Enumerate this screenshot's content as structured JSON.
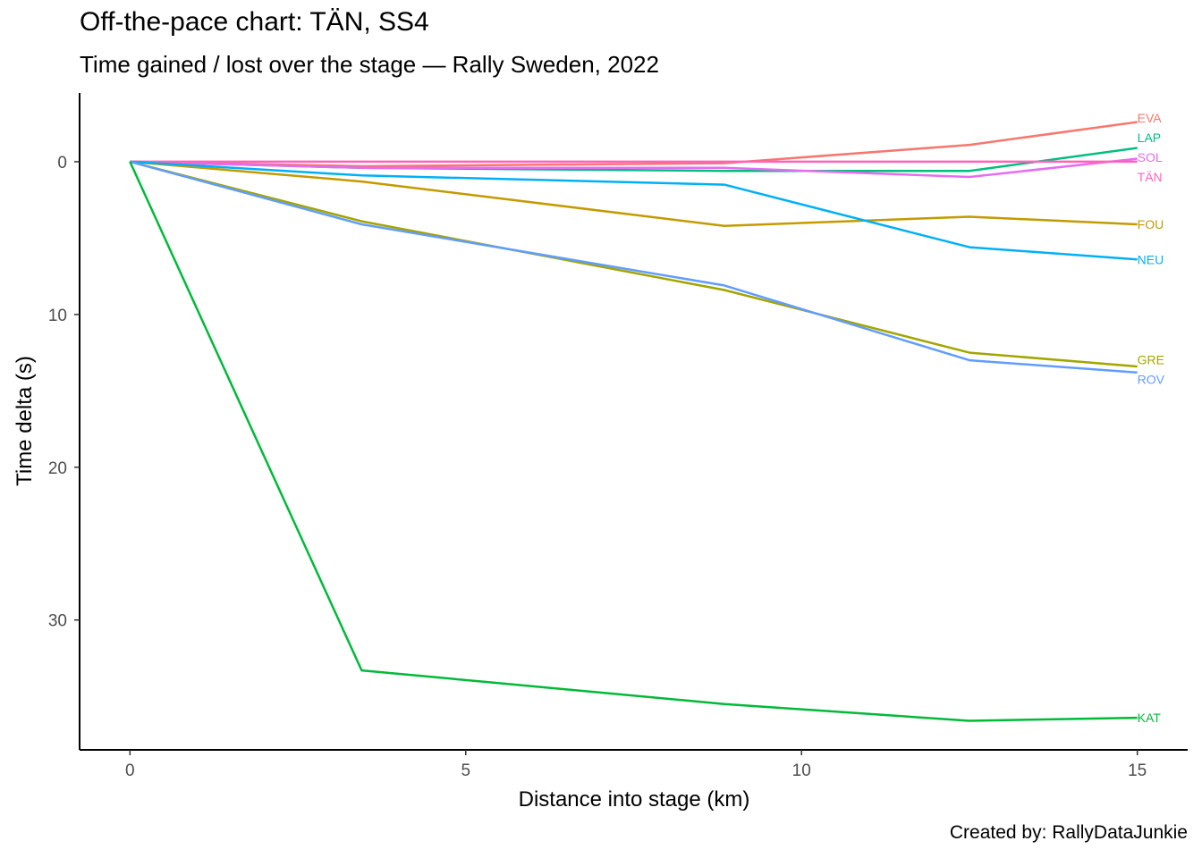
{
  "chart_data": {
    "type": "line",
    "title": "Off-the-pace chart: TÄN, SS4",
    "subtitle": "Time gained / lost over the stage — Rally Sweden, 2022",
    "caption": "Created by: RallyDataJunkie",
    "xlabel": "Distance into stage (km)",
    "ylabel": "Time delta (s)",
    "xlim": [
      -0.75,
      15.75
    ],
    "ylim": [
      -4.5,
      38.5
    ],
    "y_reversed": true,
    "xticks": [
      0,
      5,
      10,
      15
    ],
    "yticks": [
      0,
      10,
      20,
      30
    ],
    "grid": false,
    "legend": "direct labels at line ends",
    "series": [
      {
        "name": "EVA",
        "color": "#F8766D",
        "x": [
          0,
          3.45,
          8.85,
          12.5,
          15
        ],
        "y": [
          0,
          0.3,
          0.1,
          -1.1,
          -2.6
        ]
      },
      {
        "name": "LAP",
        "color": "#00BF7D",
        "x": [
          0,
          3.45,
          8.85,
          12.5,
          15
        ],
        "y": [
          0,
          0.4,
          0.6,
          0.6,
          -0.9
        ]
      },
      {
        "name": "SOL",
        "color": "#E76BF3",
        "x": [
          0,
          3.45,
          8.85,
          12.5,
          15
        ],
        "y": [
          0,
          0.4,
          0.4,
          1.0,
          -0.2
        ]
      },
      {
        "name": "TÄN",
        "color": "#FF62BC",
        "x": [
          0,
          3.45,
          8.85,
          12.5,
          15
        ],
        "y": [
          0,
          0,
          0,
          0,
          0
        ]
      },
      {
        "name": "FOU",
        "color": "#C49A00",
        "x": [
          0,
          3.45,
          8.85,
          12.5,
          15
        ],
        "y": [
          0,
          1.3,
          4.2,
          3.6,
          4.1
        ]
      },
      {
        "name": "NEU",
        "color": "#00B0F6",
        "x": [
          0,
          3.45,
          8.85,
          12.5,
          15
        ],
        "y": [
          0,
          0.9,
          1.5,
          5.6,
          6.4
        ]
      },
      {
        "name": "GRE",
        "color": "#A3A500",
        "x": [
          0,
          3.45,
          8.85,
          12.5,
          15
        ],
        "y": [
          0,
          3.9,
          8.4,
          12.5,
          13.4
        ]
      },
      {
        "name": "ROV",
        "color": "#619CFF",
        "x": [
          0,
          3.45,
          8.85,
          12.5,
          15
        ],
        "y": [
          0,
          4.1,
          8.1,
          13.0,
          13.8
        ]
      },
      {
        "name": "KAT",
        "color": "#00BA38",
        "x": [
          0,
          3.45,
          8.85,
          12.5,
          15
        ],
        "y": [
          0,
          33.3,
          35.5,
          36.6,
          36.4
        ]
      }
    ]
  }
}
